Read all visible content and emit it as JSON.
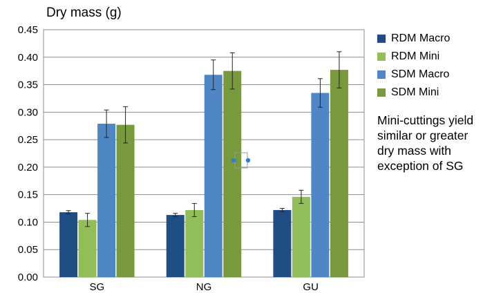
{
  "chart_data": {
    "type": "bar",
    "title": "",
    "ylabel": "Dry mass (g)",
    "xlabel": "",
    "categories": [
      "SG",
      "NG",
      "GU"
    ],
    "ylim": [
      0,
      0.45
    ],
    "yticks": [
      "0.00",
      "0.05",
      "0.10",
      "0.15",
      "0.20",
      "0.25",
      "0.30",
      "0.35",
      "0.40",
      "0.45"
    ],
    "grid": true,
    "legend_position": "right",
    "series": [
      {
        "name": "RDM Macro",
        "color": "#1f4e85",
        "values": [
          0.118,
          0.113,
          0.122
        ],
        "errors": [
          0.003,
          0.003,
          0.003
        ]
      },
      {
        "name": "RDM Mini",
        "color": "#92be5a",
        "values": [
          0.104,
          0.122,
          0.146
        ],
        "errors": [
          0.012,
          0.012,
          0.012
        ]
      },
      {
        "name": "SDM Macro",
        "color": "#4f86c5",
        "values": [
          0.279,
          0.368,
          0.335
        ],
        "errors": [
          0.025,
          0.027,
          0.026
        ]
      },
      {
        "name": "SDM Mini",
        "color": "#789a3d",
        "values": [
          0.277,
          0.375,
          0.377
        ],
        "errors": [
          0.033,
          0.033,
          0.033
        ]
      }
    ],
    "annotation": "Mini-cuttings yield similar or greater dry mass with exception of SG"
  }
}
